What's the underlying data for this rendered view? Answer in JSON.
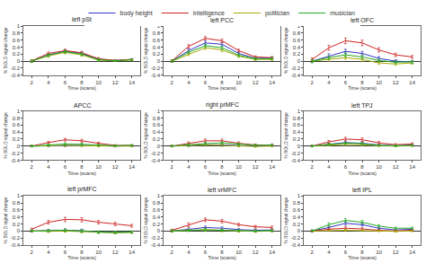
{
  "chart_data": [
    {
      "type": "line",
      "title": "left pSt",
      "xlabel": "Time (scans)",
      "ylabel": "% BOLD signal change",
      "x": [
        2,
        4,
        6,
        8,
        10,
        12,
        14
      ],
      "xlim": [
        1,
        15
      ],
      "xticks": [
        2,
        4,
        6,
        8,
        10,
        12,
        14
      ],
      "ylim": [
        -0.4,
        1.0
      ],
      "yticks": [
        -0.4,
        -0.2,
        0,
        0.2,
        0.4,
        0.6,
        0.8,
        1
      ],
      "grid": false,
      "series": [
        {
          "name": "body height",
          "color": "#3333cc",
          "values": [
            0.0,
            0.18,
            0.28,
            0.22,
            0.05,
            0.02,
            0.05
          ],
          "errors": [
            0.03,
            0.04,
            0.04,
            0.04,
            0.03,
            0.02,
            0.02
          ]
        },
        {
          "name": "intelligence",
          "color": "#cc2222",
          "values": [
            0.01,
            0.22,
            0.3,
            0.24,
            0.07,
            0.02,
            0.05
          ],
          "errors": [
            0.03,
            0.04,
            0.04,
            0.04,
            0.03,
            0.02,
            0.02
          ]
        },
        {
          "name": "politician",
          "color": "#aaaa00",
          "values": [
            0.0,
            0.15,
            0.25,
            0.18,
            0.03,
            0.01,
            0.03
          ],
          "errors": [
            0.03,
            0.04,
            0.04,
            0.04,
            0.03,
            0.02,
            0.02
          ]
        },
        {
          "name": "musician",
          "color": "#22aa22",
          "values": [
            0.0,
            0.17,
            0.27,
            0.2,
            0.04,
            0.01,
            0.04
          ],
          "errors": [
            0.03,
            0.04,
            0.04,
            0.04,
            0.03,
            0.02,
            0.02
          ]
        }
      ]
    },
    {
      "type": "line",
      "title": "left PCC",
      "xlabel": "Time (scans)",
      "ylabel": "% BOLD signal change",
      "x": [
        2,
        4,
        6,
        8,
        10,
        12,
        14
      ],
      "xlim": [
        1,
        15
      ],
      "xticks": [
        2,
        4,
        6,
        8,
        10,
        12,
        14
      ],
      "ylim": [
        -0.4,
        1.0
      ],
      "yticks": [
        -0.4,
        -0.2,
        0,
        0.2,
        0.4,
        0.6,
        0.8,
        1
      ],
      "grid": false,
      "series": [
        {
          "name": "body height",
          "color": "#3333cc",
          "values": [
            0.0,
            0.3,
            0.52,
            0.48,
            0.22,
            0.08,
            0.09
          ],
          "errors": [
            0.03,
            0.05,
            0.05,
            0.05,
            0.04,
            0.03,
            0.03
          ]
        },
        {
          "name": "intelligence",
          "color": "#cc2222",
          "values": [
            0.01,
            0.42,
            0.65,
            0.58,
            0.3,
            0.12,
            0.1
          ],
          "errors": [
            0.03,
            0.05,
            0.05,
            0.05,
            0.04,
            0.03,
            0.03
          ]
        },
        {
          "name": "politician",
          "color": "#aaaa00",
          "values": [
            0.0,
            0.2,
            0.38,
            0.32,
            0.14,
            0.05,
            0.05
          ],
          "errors": [
            0.03,
            0.04,
            0.05,
            0.05,
            0.03,
            0.03,
            0.03
          ]
        },
        {
          "name": "musician",
          "color": "#22aa22",
          "values": [
            0.0,
            0.25,
            0.44,
            0.38,
            0.17,
            0.07,
            0.07
          ],
          "errors": [
            0.03,
            0.04,
            0.05,
            0.05,
            0.04,
            0.03,
            0.03
          ]
        }
      ]
    },
    {
      "type": "line",
      "title": "left OFC",
      "xlabel": "Time (scans)",
      "ylabel": "% BOLD signal change",
      "x": [
        2,
        4,
        6,
        8,
        10,
        12,
        14
      ],
      "xlim": [
        1,
        15
      ],
      "xticks": [
        2,
        4,
        6,
        8,
        10,
        12,
        14
      ],
      "ylim": [
        -0.4,
        1.0
      ],
      "yticks": [
        -0.4,
        -0.2,
        0,
        0.2,
        0.4,
        0.6,
        0.8,
        1
      ],
      "grid": false,
      "series": [
        {
          "name": "body height",
          "color": "#3333cc",
          "values": [
            0.0,
            0.15,
            0.28,
            0.22,
            0.08,
            0.0,
            -0.02
          ],
          "errors": [
            0.04,
            0.06,
            0.06,
            0.06,
            0.05,
            0.04,
            0.04
          ]
        },
        {
          "name": "intelligence",
          "color": "#cc2222",
          "values": [
            0.05,
            0.38,
            0.58,
            0.52,
            0.32,
            0.18,
            0.12
          ],
          "errors": [
            0.04,
            0.07,
            0.08,
            0.08,
            0.06,
            0.05,
            0.04
          ]
        },
        {
          "name": "politician",
          "color": "#aaaa00",
          "values": [
            0.0,
            0.05,
            0.1,
            0.05,
            -0.05,
            -0.08,
            -0.05
          ],
          "errors": [
            0.04,
            0.05,
            0.05,
            0.05,
            0.04,
            0.04,
            0.04
          ]
        },
        {
          "name": "musician",
          "color": "#22aa22",
          "values": [
            0.0,
            0.1,
            0.18,
            0.12,
            0.02,
            -0.03,
            -0.02
          ],
          "errors": [
            0.04,
            0.05,
            0.06,
            0.06,
            0.05,
            0.04,
            0.04
          ]
        }
      ]
    },
    {
      "type": "line",
      "title": "APCC",
      "xlabel": "Time (scans)",
      "ylabel": "% BOLD signal change",
      "x": [
        2,
        4,
        6,
        8,
        10,
        12,
        14
      ],
      "xlim": [
        1,
        15
      ],
      "xticks": [
        2,
        4,
        6,
        8,
        10,
        12,
        14
      ],
      "ylim": [
        -0.4,
        1.0
      ],
      "yticks": [
        -0.4,
        -0.2,
        0,
        0.2,
        0.4,
        0.6,
        0.8,
        1
      ],
      "grid": false,
      "series": [
        {
          "name": "body height",
          "color": "#3333cc",
          "values": [
            0.0,
            0.01,
            0.02,
            0.02,
            0.01,
            0.0,
            0.01
          ],
          "errors": [
            0.02,
            0.02,
            0.03,
            0.02,
            0.02,
            0.02,
            0.02
          ]
        },
        {
          "name": "intelligence",
          "color": "#cc2222",
          "values": [
            0.0,
            0.1,
            0.18,
            0.15,
            0.08,
            0.02,
            0.02
          ],
          "errors": [
            0.02,
            0.03,
            0.04,
            0.04,
            0.03,
            0.02,
            0.02
          ]
        },
        {
          "name": "politician",
          "color": "#aaaa00",
          "values": [
            0.0,
            0.01,
            0.02,
            0.01,
            0.0,
            0.0,
            0.0
          ],
          "errors": [
            0.02,
            0.02,
            0.03,
            0.02,
            0.02,
            0.02,
            0.02
          ]
        },
        {
          "name": "musician",
          "color": "#22aa22",
          "values": [
            0.0,
            0.03,
            0.06,
            0.05,
            0.03,
            0.01,
            0.02
          ],
          "errors": [
            0.02,
            0.03,
            0.03,
            0.03,
            0.02,
            0.02,
            0.02
          ]
        }
      ]
    },
    {
      "type": "line",
      "title": "right prMFC",
      "xlabel": "Time (scans)",
      "ylabel": "% BOLD signal change",
      "x": [
        2,
        4,
        6,
        8,
        10,
        12,
        14
      ],
      "xlim": [
        1,
        15
      ],
      "xticks": [
        2,
        4,
        6,
        8,
        10,
        12,
        14
      ],
      "ylim": [
        -0.4,
        1.0
      ],
      "yticks": [
        -0.4,
        -0.2,
        0,
        0.2,
        0.4,
        0.6,
        0.8,
        1
      ],
      "grid": false,
      "series": [
        {
          "name": "body height",
          "color": "#3333cc",
          "values": [
            0.0,
            0.02,
            0.04,
            0.03,
            0.01,
            0.0,
            0.01
          ],
          "errors": [
            0.02,
            0.03,
            0.03,
            0.03,
            0.02,
            0.02,
            0.02
          ]
        },
        {
          "name": "intelligence",
          "color": "#cc2222",
          "values": [
            0.0,
            0.08,
            0.15,
            0.15,
            0.08,
            0.03,
            0.03
          ],
          "errors": [
            0.02,
            0.04,
            0.05,
            0.05,
            0.04,
            0.03,
            0.03
          ]
        },
        {
          "name": "politician",
          "color": "#aaaa00",
          "values": [
            0.0,
            0.01,
            0.03,
            0.02,
            0.0,
            -0.01,
            0.0
          ],
          "errors": [
            0.02,
            0.02,
            0.03,
            0.03,
            0.02,
            0.02,
            0.02
          ]
        },
        {
          "name": "musician",
          "color": "#22aa22",
          "values": [
            0.0,
            0.04,
            0.07,
            0.09,
            0.05,
            0.02,
            0.03
          ],
          "errors": [
            0.02,
            0.03,
            0.04,
            0.04,
            0.03,
            0.02,
            0.02
          ]
        }
      ]
    },
    {
      "type": "line",
      "title": "left TPJ",
      "xlabel": "Time (scans)",
      "ylabel": "% BOLD signal change",
      "x": [
        2,
        4,
        6,
        8,
        10,
        12,
        14
      ],
      "xlim": [
        1,
        15
      ],
      "xticks": [
        2,
        4,
        6,
        8,
        10,
        12,
        14
      ],
      "ylim": [
        -0.4,
        1.0
      ],
      "yticks": [
        -0.4,
        -0.2,
        0,
        0.2,
        0.4,
        0.6,
        0.8,
        1
      ],
      "grid": false,
      "series": [
        {
          "name": "body height",
          "color": "#3333cc",
          "values": [
            0.0,
            0.05,
            0.1,
            0.08,
            0.03,
            0.01,
            0.03
          ],
          "errors": [
            0.02,
            0.03,
            0.04,
            0.04,
            0.03,
            0.02,
            0.02
          ]
        },
        {
          "name": "intelligence",
          "color": "#cc2222",
          "values": [
            0.0,
            0.12,
            0.2,
            0.18,
            0.09,
            0.04,
            0.06
          ],
          "errors": [
            0.02,
            0.04,
            0.05,
            0.05,
            0.04,
            0.03,
            0.03
          ]
        },
        {
          "name": "politician",
          "color": "#aaaa00",
          "values": [
            0.0,
            0.03,
            0.05,
            0.04,
            0.01,
            0.0,
            0.01
          ],
          "errors": [
            0.02,
            0.02,
            0.03,
            0.03,
            0.02,
            0.02,
            0.02
          ]
        },
        {
          "name": "musician",
          "color": "#22aa22",
          "values": [
            0.0,
            0.05,
            0.08,
            0.07,
            0.02,
            0.01,
            0.02
          ],
          "errors": [
            0.02,
            0.03,
            0.03,
            0.03,
            0.02,
            0.02,
            0.02
          ]
        }
      ]
    },
    {
      "type": "line",
      "title": "left prMFC",
      "xlabel": "Time (scans)",
      "ylabel": "% BOLD signal change",
      "x": [
        2,
        4,
        6,
        8,
        10,
        12,
        14
      ],
      "xlim": [
        1,
        15
      ],
      "xticks": [
        2,
        4,
        6,
        8,
        10,
        12,
        14
      ],
      "ylim": [
        -0.4,
        1.0
      ],
      "yticks": [
        -0.4,
        -0.2,
        0,
        0.2,
        0.4,
        0.6,
        0.8,
        1
      ],
      "grid": false,
      "series": [
        {
          "name": "body height",
          "color": "#3333cc",
          "values": [
            0.0,
            0.01,
            0.02,
            0.01,
            -0.03,
            -0.04,
            -0.03
          ],
          "errors": [
            0.03,
            0.03,
            0.04,
            0.04,
            0.03,
            0.03,
            0.03
          ]
        },
        {
          "name": "intelligence",
          "color": "#cc2222",
          "values": [
            0.05,
            0.25,
            0.33,
            0.32,
            0.25,
            0.2,
            0.15
          ],
          "errors": [
            0.03,
            0.05,
            0.06,
            0.06,
            0.05,
            0.05,
            0.04
          ]
        },
        {
          "name": "politician",
          "color": "#aaaa00",
          "values": [
            0.0,
            -0.01,
            0.0,
            -0.02,
            -0.04,
            -0.05,
            -0.04
          ],
          "errors": [
            0.03,
            0.03,
            0.03,
            0.03,
            0.03,
            0.03,
            0.03
          ]
        },
        {
          "name": "musician",
          "color": "#22aa22",
          "values": [
            0.0,
            0.01,
            0.02,
            0.0,
            -0.03,
            -0.04,
            -0.03
          ],
          "errors": [
            0.03,
            0.03,
            0.04,
            0.04,
            0.03,
            0.03,
            0.03
          ]
        }
      ]
    },
    {
      "type": "line",
      "title": "left vrMFC",
      "xlabel": "Time (scans)",
      "ylabel": "% BOLD signal change",
      "x": [
        2,
        4,
        6,
        8,
        10,
        12,
        14
      ],
      "xlim": [
        1,
        15
      ],
      "xticks": [
        2,
        4,
        6,
        8,
        10,
        12,
        14
      ],
      "ylim": [
        -0.4,
        1.0
      ],
      "yticks": [
        -0.4,
        -0.2,
        0,
        0.2,
        0.4,
        0.6,
        0.8,
        1
      ],
      "grid": false,
      "series": [
        {
          "name": "body height",
          "color": "#3333cc",
          "values": [
            0.0,
            0.05,
            0.1,
            0.08,
            0.04,
            0.02,
            0.03
          ],
          "errors": [
            0.03,
            0.04,
            0.04,
            0.04,
            0.03,
            0.03,
            0.03
          ]
        },
        {
          "name": "intelligence",
          "color": "#cc2222",
          "values": [
            0.02,
            0.18,
            0.32,
            0.28,
            0.18,
            0.12,
            0.1
          ],
          "errors": [
            0.03,
            0.05,
            0.05,
            0.05,
            0.04,
            0.04,
            0.04
          ]
        },
        {
          "name": "politician",
          "color": "#aaaa00",
          "values": [
            0.0,
            0.02,
            0.04,
            0.02,
            0.0,
            -0.01,
            0.0
          ],
          "errors": [
            0.03,
            0.03,
            0.04,
            0.04,
            0.03,
            0.03,
            0.03
          ]
        },
        {
          "name": "musician",
          "color": "#22aa22",
          "values": [
            0.0,
            0.02,
            0.03,
            0.02,
            0.01,
            0.0,
            0.01
          ],
          "errors": [
            0.03,
            0.03,
            0.04,
            0.03,
            0.03,
            0.03,
            0.03
          ]
        }
      ]
    },
    {
      "type": "line",
      "title": "left IPL",
      "xlabel": "Time (scans)",
      "ylabel": "% BOLD signal change",
      "x": [
        2,
        4,
        6,
        8,
        10,
        12,
        14
      ],
      "xlim": [
        1,
        15
      ],
      "xticks": [
        2,
        4,
        6,
        8,
        10,
        12,
        14
      ],
      "ylim": [
        -0.4,
        1.0
      ],
      "yticks": [
        -0.4,
        -0.2,
        0,
        0.2,
        0.4,
        0.6,
        0.8,
        1
      ],
      "grid": false,
      "series": [
        {
          "name": "body height",
          "color": "#3333cc",
          "values": [
            0.0,
            0.1,
            0.22,
            0.18,
            0.08,
            0.03,
            0.05
          ],
          "errors": [
            0.03,
            0.04,
            0.05,
            0.04,
            0.03,
            0.03,
            0.03
          ]
        },
        {
          "name": "intelligence",
          "color": "#cc2222",
          "values": [
            0.0,
            0.05,
            0.08,
            0.06,
            0.02,
            0.0,
            0.02
          ],
          "errors": [
            0.02,
            0.03,
            0.04,
            0.03,
            0.02,
            0.02,
            0.02
          ]
        },
        {
          "name": "politician",
          "color": "#aaaa00",
          "values": [
            0.0,
            0.01,
            0.02,
            0.01,
            0.0,
            -0.01,
            0.0
          ],
          "errors": [
            0.02,
            0.02,
            0.03,
            0.02,
            0.02,
            0.02,
            0.02
          ]
        },
        {
          "name": "musician",
          "color": "#22aa22",
          "values": [
            0.0,
            0.18,
            0.3,
            0.25,
            0.14,
            0.08,
            0.08
          ],
          "errors": [
            0.03,
            0.05,
            0.05,
            0.05,
            0.04,
            0.03,
            0.03
          ]
        }
      ]
    }
  ]
}
